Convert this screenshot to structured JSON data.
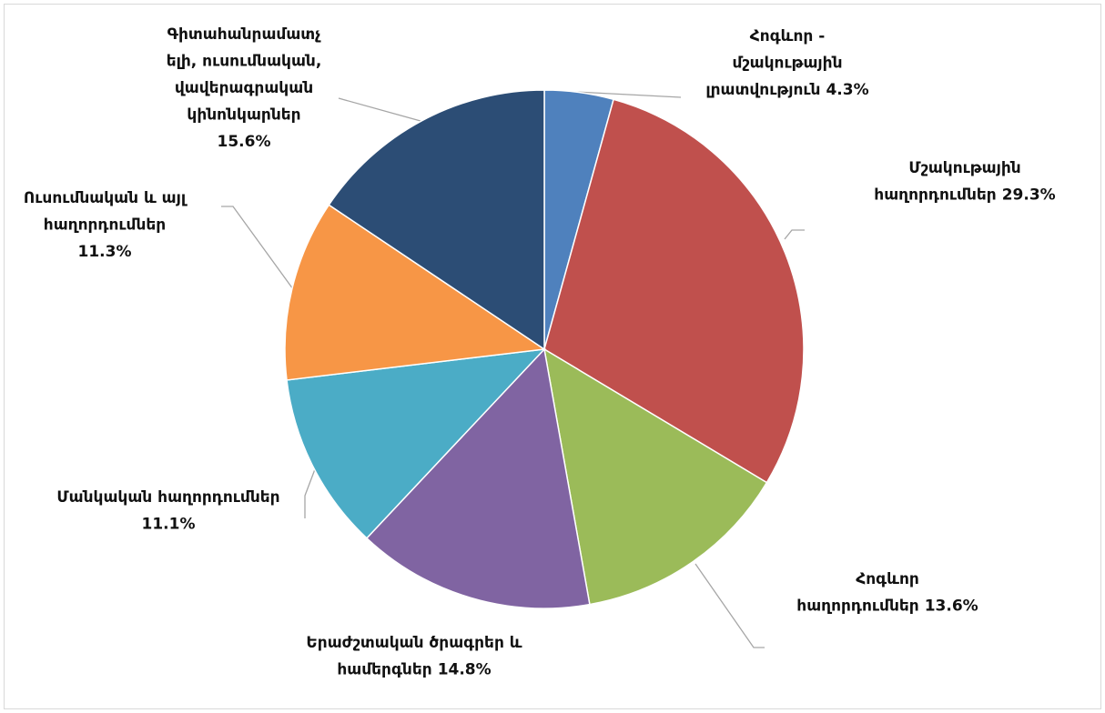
{
  "chart_data": {
    "type": "pie",
    "categories": [
      [
        "Հոգևոր -",
        "մշակութային",
        "լրատվություն"
      ],
      [
        "Մշակութային",
        "հաղորդումներ"
      ],
      [
        "Հոգևոր",
        "հաղորդումներ"
      ],
      [
        "Երաժշտական ծրագրեր և",
        "համերգներ"
      ],
      [
        "Մանկական հաղորդումներ"
      ],
      [
        "Ուսումնական և այլ",
        "հաղորդումներ"
      ],
      [
        "Գիտահանրամատչ",
        "ելի, ուսումնական,",
        "վավերագրական",
        "կինոնկարներ"
      ]
    ],
    "values": [
      4.3,
      29.3,
      13.6,
      14.8,
      11.1,
      11.3,
      15.6
    ],
    "value_labels": [
      "4.3%",
      "29.3%",
      "13.6%",
      "14.8%",
      "11.1%",
      "11.3%",
      "15.6%"
    ],
    "colors": [
      "#4f81bd",
      "#c0504d",
      "#9bbb59",
      "#8064a2",
      "#4bacc6",
      "#f79646",
      "#2c4d75"
    ]
  }
}
